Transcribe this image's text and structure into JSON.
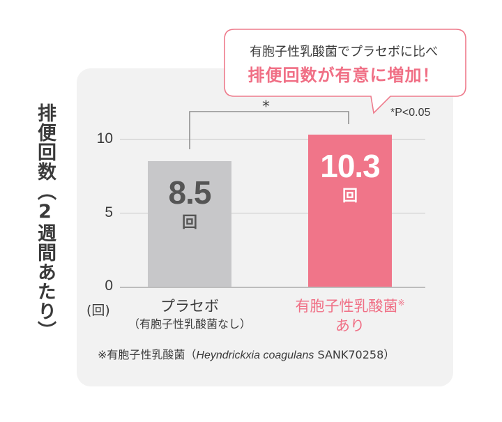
{
  "chart_data": {
    "type": "bar",
    "categories": [
      "プラセボ",
      "有胞子性乳酸菌※あり"
    ],
    "category_sublabels": [
      "（有胞子性乳酸菌なし）",
      ""
    ],
    "values": [
      8.5,
      10.3
    ],
    "value_labels": [
      "8.5",
      "10.3"
    ],
    "bar_unit_label": "回",
    "colors": [
      "#c7c7c9",
      "#f07589"
    ],
    "yticks": [
      0,
      5,
      10
    ],
    "ylim": [
      0,
      10.3
    ],
    "ylabel": "排便回数（2週間あたり）",
    "yunit": "(回)",
    "significance_mark": "*",
    "significance_note": "*P<0.05",
    "grid": true
  },
  "labels": {
    "cat1": "プラセボ",
    "cat1_sub": "（有胞子性乳酸菌なし）",
    "cat2": "有胞子性乳酸菌",
    "cat2_mark": "※",
    "cat2_sub": "あり"
  },
  "callout": {
    "line1": "有胞子性乳酸菌でプラセボに比べ",
    "line2": "排便回数が有意に増加！"
  },
  "footnote": {
    "prefix": "※有胞子性乳酸菌（",
    "species": "Heyndrickxia coagulans",
    "suffix": " SANK70258）"
  }
}
